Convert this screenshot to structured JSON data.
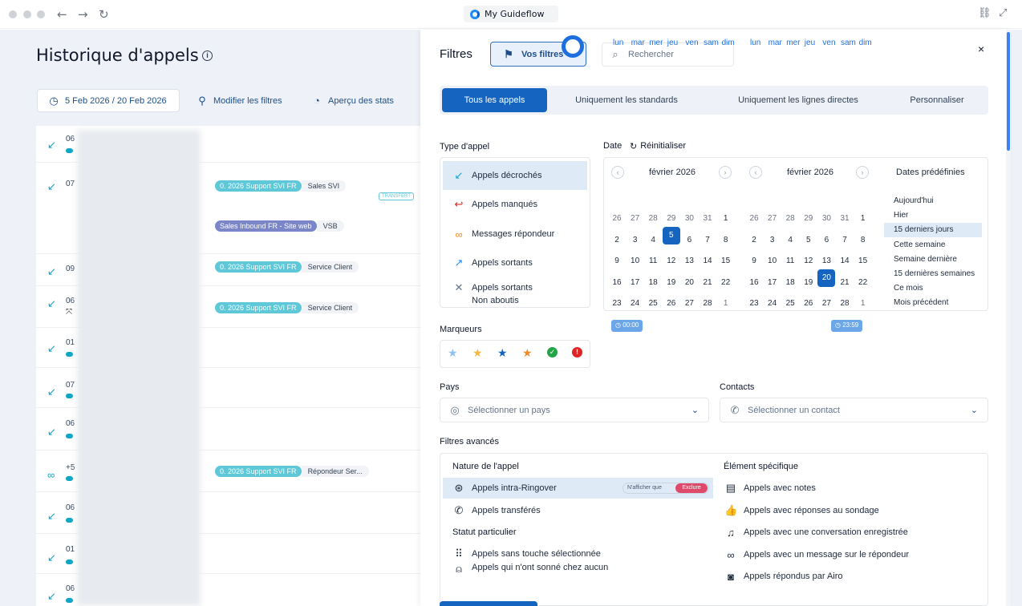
{
  "browser": {
    "tab_title": "My Guideflow"
  },
  "page": {
    "title": "Historique d'appels",
    "date_range": "5 Feb 2026 / 20 Feb 2026",
    "modify_filters": "Modifier les filtres",
    "stats_preview": "Aperçu des stats"
  },
  "list_rows": [
    {
      "num": "06"
    },
    {
      "num": "07"
    },
    {
      "num": "09"
    },
    {
      "num": "06"
    },
    {
      "num": "01"
    },
    {
      "num": "07"
    },
    {
      "num": "06"
    },
    {
      "num": "+5"
    },
    {
      "num": "06"
    },
    {
      "num": "01"
    },
    {
      "num": "06"
    }
  ],
  "tags": [
    {
      "tag": "0. 2026 Support SVI FR",
      "suffix": "Sales SVI"
    },
    {
      "tag": "Sales Inbound FR - Site web",
      "suffix": "VSB"
    },
    {
      "tag": "0. 2026 Support SVI FR",
      "suffix": "Service Client"
    },
    {
      "tag": "0. 2026 Support SVI FR",
      "suffix": "Service Client"
    },
    {
      "tag": "0. 2026 Support SVI FR",
      "suffix": "Répondeur Ser..."
    }
  ],
  "transit_label": "TRANSFERT",
  "panel": {
    "title": "Filtres",
    "your_filters": "Vos filtres",
    "search_placeholder": "Rechercher",
    "close": "×",
    "segments": [
      "Tous les appels",
      "Uniquement les standards",
      "Uniquement les lignes directes",
      "Personnaliser"
    ],
    "call_type_label": "Type d'appel",
    "call_types": [
      {
        "label": "Appels décrochés",
        "icon": "answered-call-icon"
      },
      {
        "label": "Appels manqués",
        "icon": "missed-call-icon"
      },
      {
        "label": "Messages répondeur",
        "icon": "voicemail-icon"
      },
      {
        "label": "Appels sortants",
        "icon": "outgoing-call-icon"
      },
      {
        "label": "Appels sortants",
        "label2": "Non aboutis",
        "icon": "failed-outgoing-icon"
      }
    ],
    "date_label": "Date",
    "reset": "Réinitialiser",
    "months": [
      "février 2026",
      "février 2026"
    ],
    "dow": [
      "lun",
      "mar",
      "mer",
      "jeu",
      "ven",
      "sam",
      "dim"
    ],
    "weeks": [
      [
        "26",
        "27",
        "28",
        "29",
        "30",
        "31",
        "1"
      ],
      [
        "2",
        "3",
        "4",
        "5",
        "6",
        "7",
        "8"
      ],
      [
        "9",
        "10",
        "11",
        "12",
        "13",
        "14",
        "15"
      ],
      [
        "16",
        "17",
        "18",
        "19",
        "20",
        "21",
        "22"
      ],
      [
        "23",
        "24",
        "25",
        "26",
        "27",
        "28",
        "1"
      ]
    ],
    "selected_left": "5",
    "selected_right": "20",
    "presets_label": "Dates prédéfinies",
    "presets": [
      "Aujourd'hui",
      "Hier",
      "15 derniers jours",
      "Cette semaine",
      "Semaine dernière",
      "15 dernières semaines",
      "Ce mois",
      "Mois précédent"
    ],
    "active_preset": "15 derniers jours",
    "time_start": "00:00",
    "time_end": "23:59",
    "markers_label": "Marqueurs",
    "markers": [
      {
        "icon": "star-light-blue-icon",
        "color": "#8fc3ef"
      },
      {
        "icon": "star-gold-icon",
        "color": "#f5b840"
      },
      {
        "icon": "star-blue-icon",
        "color": "#1565c0"
      },
      {
        "icon": "star-orange-icon",
        "color": "#f08a24"
      },
      {
        "icon": "check-green-icon",
        "color": "#22a447"
      },
      {
        "icon": "alert-red-icon",
        "color": "#e02424"
      }
    ],
    "country_label": "Pays",
    "country_placeholder": "Sélectionner un pays",
    "contacts_label": "Contacts",
    "contact_placeholder": "Sélectionner un contact",
    "advanced_label": "Filtres avancés",
    "nature_label": "Nature de l'appel",
    "nature_items": [
      "Appels intra-Ringover",
      "Appels transférés"
    ],
    "only_show": "N'afficher que",
    "exclude": "Exclure",
    "status_label": "Statut particulier",
    "status_items": [
      "Appels sans touche sélectionnée",
      "Appels qui n'ont sonné chez aucun"
    ],
    "specific_label": "Élément spécifique",
    "specific_items": [
      "Appels avec notes",
      "Appels avec réponses au sondage",
      "Appels avec une conversation enregistrée",
      "Appels avec un message sur le répondeur",
      "Appels répondus par Airo"
    ]
  }
}
